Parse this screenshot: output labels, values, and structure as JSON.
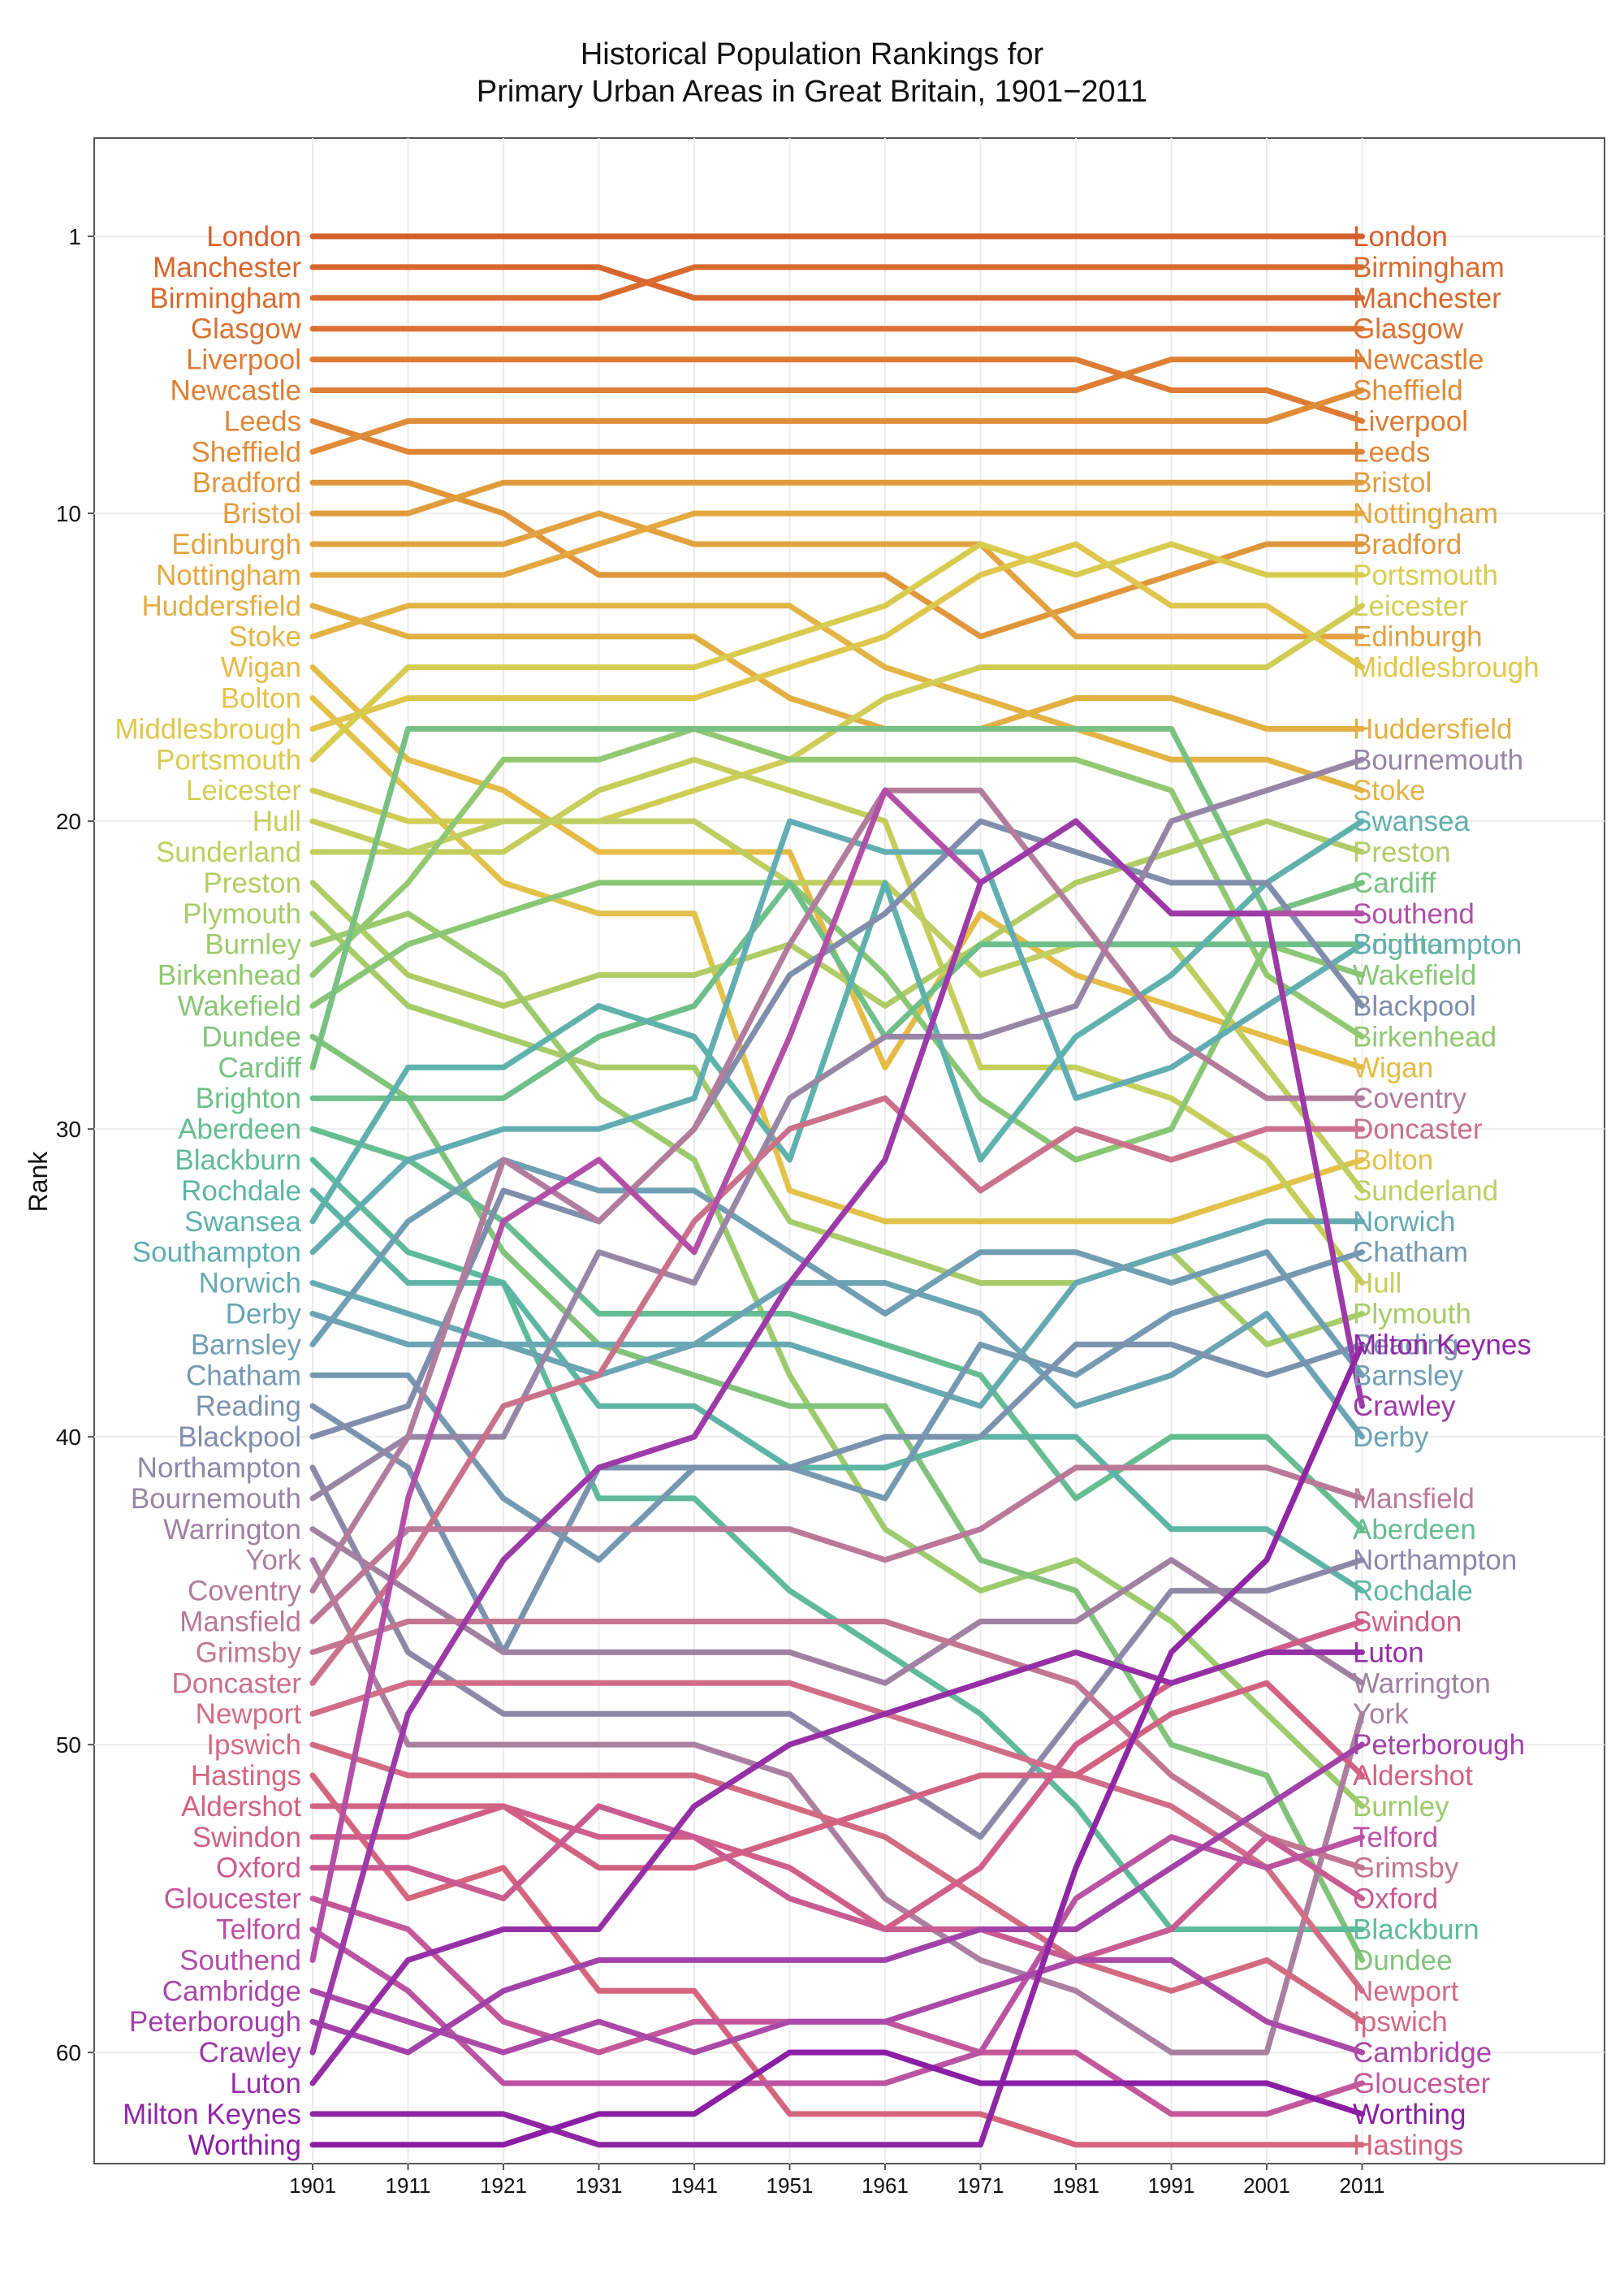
{
  "title": [
    "Historical Population Rankings for",
    "Primary Urban Areas in Great Britain, 1901−2011"
  ],
  "chart_data": {
    "type": "line",
    "ylabel": "Rank",
    "y_reversed": true,
    "ylim": [
      65.5,
      -2
    ],
    "yticks": [
      1,
      10,
      20,
      30,
      40,
      50,
      60
    ],
    "x": [
      "1901",
      "1911",
      "1921",
      "1931",
      "1941",
      "1951",
      "1961",
      "1971",
      "1981",
      "1991",
      "2001",
      "2011"
    ],
    "grid": true,
    "series": [
      {
        "name": "London",
        "color": "#D55E2B",
        "values": [
          1,
          1,
          1,
          1,
          1,
          1,
          1,
          1,
          1,
          1,
          1,
          1
        ]
      },
      {
        "name": "Manchester",
        "color": "#D8662E",
        "values": [
          2,
          2,
          2,
          2,
          3,
          3,
          3,
          3,
          3,
          3,
          3,
          3
        ]
      },
      {
        "name": "Birmingham",
        "color": "#D96B2F",
        "values": [
          3,
          3,
          3,
          3,
          2,
          2,
          2,
          2,
          2,
          2,
          2,
          2
        ]
      },
      {
        "name": "Glasgow",
        "color": "#DB7131",
        "values": [
          4,
          4,
          4,
          4,
          4,
          4,
          4,
          4,
          4,
          4,
          4,
          4
        ]
      },
      {
        "name": "Liverpool",
        "color": "#DD7A33",
        "values": [
          5,
          5,
          5,
          5,
          5,
          5,
          5,
          5,
          5,
          6,
          6,
          7
        ]
      },
      {
        "name": "Newcastle",
        "color": "#DE7F34",
        "values": [
          6,
          6,
          6,
          6,
          6,
          6,
          6,
          6,
          6,
          5,
          5,
          5
        ]
      },
      {
        "name": "Leeds",
        "color": "#DF8536",
        "values": [
          7,
          8,
          8,
          8,
          8,
          8,
          8,
          8,
          8,
          8,
          8,
          8
        ]
      },
      {
        "name": "Sheffield",
        "color": "#E08C38",
        "values": [
          8,
          7,
          7,
          7,
          7,
          7,
          7,
          7,
          7,
          7,
          7,
          6
        ]
      },
      {
        "name": "Bradford",
        "color": "#E0963B",
        "values": [
          9,
          9,
          10,
          12,
          12,
          12,
          12,
          14,
          13,
          12,
          11,
          11
        ]
      },
      {
        "name": "Bristol",
        "color": "#E19C3D",
        "values": [
          10,
          10,
          9,
          9,
          9,
          9,
          9,
          9,
          9,
          9,
          9,
          9
        ]
      },
      {
        "name": "Edinburgh",
        "color": "#E2A23F",
        "values": [
          11,
          11,
          11,
          10,
          11,
          11,
          11,
          11,
          14,
          14,
          14,
          14
        ]
      },
      {
        "name": "Nottingham",
        "color": "#E3A840",
        "values": [
          12,
          12,
          12,
          11,
          10,
          10,
          10,
          10,
          10,
          10,
          10,
          10
        ]
      },
      {
        "name": "Huddersfield",
        "color": "#E2AF43",
        "values": [
          13,
          14,
          14,
          14,
          14,
          16,
          17,
          17,
          16,
          16,
          17,
          17
        ]
      },
      {
        "name": "Stoke",
        "color": "#E3B444",
        "values": [
          14,
          13,
          13,
          13,
          13,
          13,
          15,
          16,
          17,
          18,
          18,
          19
        ]
      },
      {
        "name": "Wigan",
        "color": "#E4BC46",
        "values": [
          15,
          18,
          19,
          21,
          21,
          21,
          28,
          23,
          25,
          26,
          27,
          28
        ]
      },
      {
        "name": "Bolton",
        "color": "#E2C24A",
        "values": [
          16,
          19,
          22,
          23,
          23,
          32,
          33,
          33,
          33,
          33,
          32,
          31
        ]
      },
      {
        "name": "Middlesbrough",
        "color": "#E0C64C",
        "values": [
          17,
          16,
          16,
          16,
          16,
          15,
          14,
          12,
          11,
          13,
          13,
          15
        ]
      },
      {
        "name": "Portsmouth",
        "color": "#D8CC50",
        "values": [
          18,
          15,
          15,
          15,
          15,
          14,
          13,
          11,
          12,
          11,
          12,
          12
        ]
      },
      {
        "name": "Leicester",
        "color": "#D0CD56",
        "values": [
          19,
          20,
          20,
          20,
          19,
          18,
          16,
          15,
          15,
          15,
          15,
          13
        ]
      },
      {
        "name": "Hull",
        "color": "#C6CE5B",
        "values": [
          20,
          21,
          21,
          19,
          18,
          19,
          20,
          28,
          28,
          29,
          31,
          35
        ]
      },
      {
        "name": "Sunderland",
        "color": "#BFCE60",
        "values": [
          21,
          21,
          20,
          20,
          20,
          22,
          22,
          25,
          24,
          24,
          28,
          32
        ]
      },
      {
        "name": "Preston",
        "color": "#B1CC65",
        "values": [
          22,
          25,
          26,
          25,
          25,
          24,
          26,
          24,
          22,
          21,
          20,
          21
        ]
      },
      {
        "name": "Plymouth",
        "color": "#A7CB68",
        "values": [
          23,
          26,
          27,
          28,
          28,
          33,
          34,
          35,
          35,
          34,
          37,
          36
        ]
      },
      {
        "name": "Burnley",
        "color": "#9DCA6D",
        "values": [
          24,
          23,
          25,
          29,
          31,
          38,
          43,
          45,
          44,
          46,
          49,
          52
        ]
      },
      {
        "name": "Birkenhead",
        "color": "#92C871",
        "values": [
          25,
          22,
          18,
          18,
          17,
          18,
          18,
          18,
          18,
          19,
          25,
          27
        ]
      },
      {
        "name": "Wakefield",
        "color": "#89C676",
        "values": [
          26,
          24,
          23,
          22,
          22,
          22,
          25,
          29,
          31,
          30,
          24,
          25
        ]
      },
      {
        "name": "Dundee",
        "color": "#81C37B",
        "values": [
          27,
          29,
          34,
          37,
          38,
          39,
          39,
          44,
          45,
          50,
          51,
          57
        ]
      },
      {
        "name": "Cardiff",
        "color": "#78C182",
        "values": [
          28,
          17,
          17,
          17,
          17,
          17,
          17,
          17,
          17,
          17,
          23,
          22
        ]
      },
      {
        "name": "Brighton",
        "color": "#6EBF89",
        "values": [
          29,
          29,
          29,
          27,
          26,
          22,
          27,
          24,
          24,
          24,
          24,
          24
        ]
      },
      {
        "name": "Aberdeen",
        "color": "#66BD92",
        "values": [
          30,
          31,
          33,
          36,
          36,
          36,
          37,
          38,
          42,
          40,
          40,
          43
        ]
      },
      {
        "name": "Blackburn",
        "color": "#5FBA9C",
        "values": [
          31,
          34,
          35,
          42,
          42,
          45,
          47,
          49,
          52,
          56,
          56,
          56
        ]
      },
      {
        "name": "Rochdale",
        "color": "#5EB5A5",
        "values": [
          32,
          35,
          35,
          39,
          39,
          41,
          41,
          40,
          40,
          43,
          43,
          45
        ]
      },
      {
        "name": "Swansea",
        "color": "#5FB1AC",
        "values": [
          33,
          28,
          28,
          26,
          27,
          31,
          22,
          31,
          27,
          25,
          22,
          20
        ]
      },
      {
        "name": "Southampton",
        "color": "#62ADB1",
        "values": [
          34,
          31,
          30,
          30,
          29,
          20,
          21,
          21,
          29,
          28,
          26,
          24
        ]
      },
      {
        "name": "Norwich",
        "color": "#66A9B3",
        "values": [
          35,
          36,
          37,
          37,
          37,
          37,
          38,
          39,
          35,
          34,
          33,
          33
        ]
      },
      {
        "name": "Derby",
        "color": "#6BA4B3",
        "values": [
          36,
          37,
          37,
          38,
          37,
          35,
          35,
          36,
          39,
          38,
          36,
          40
        ]
      },
      {
        "name": "Barnsley",
        "color": "#709EB2",
        "values": [
          37,
          33,
          31,
          32,
          32,
          34,
          36,
          34,
          34,
          35,
          34,
          38
        ]
      },
      {
        "name": "Chatham",
        "color": "#7599B0",
        "values": [
          38,
          38,
          42,
          44,
          41,
          41,
          42,
          37,
          38,
          36,
          35,
          34
        ]
      },
      {
        "name": "Reading",
        "color": "#7B93AE",
        "values": [
          39,
          41,
          47,
          41,
          41,
          41,
          40,
          40,
          37,
          37,
          38,
          37
        ]
      },
      {
        "name": "Blackpool",
        "color": "#808DAB",
        "values": [
          40,
          39,
          32,
          33,
          30,
          25,
          23,
          20,
          21,
          22,
          22,
          26
        ]
      },
      {
        "name": "Northampton",
        "color": "#8C89A8",
        "values": [
          41,
          47,
          49,
          49,
          49,
          49,
          51,
          53,
          49,
          45,
          45,
          44
        ]
      },
      {
        "name": "Bournemouth",
        "color": "#9786A5",
        "values": [
          42,
          40,
          40,
          34,
          35,
          29,
          27,
          27,
          26,
          20,
          19,
          18
        ]
      },
      {
        "name": "Warrington",
        "color": "#A081A2",
        "values": [
          43,
          45,
          47,
          47,
          47,
          47,
          48,
          46,
          46,
          44,
          46,
          48
        ]
      },
      {
        "name": "York",
        "color": "#AA7FA0",
        "values": [
          44,
          50,
          50,
          50,
          50,
          51,
          55,
          57,
          58,
          60,
          60,
          49
        ]
      },
      {
        "name": "Coventry",
        "color": "#B27C9D",
        "values": [
          45,
          40,
          31,
          33,
          30,
          24,
          19,
          19,
          23,
          27,
          29,
          29
        ]
      },
      {
        "name": "Mansfield",
        "color": "#BA7998",
        "values": [
          46,
          43,
          43,
          43,
          43,
          43,
          44,
          43,
          41,
          41,
          41,
          42
        ]
      },
      {
        "name": "Grimsby",
        "color": "#C27692",
        "values": [
          47,
          46,
          46,
          46,
          46,
          46,
          46,
          47,
          48,
          51,
          53,
          54
        ]
      },
      {
        "name": "Doncaster",
        "color": "#CA718C",
        "values": [
          48,
          44,
          39,
          38,
          33,
          30,
          29,
          32,
          30,
          31,
          30,
          30
        ]
      },
      {
        "name": "Newport",
        "color": "#D16D86",
        "values": [
          49,
          48,
          48,
          48,
          48,
          48,
          49,
          50,
          51,
          52,
          54,
          58
        ]
      },
      {
        "name": "Ipswich",
        "color": "#D26A81",
        "values": [
          50,
          51,
          51,
          51,
          51,
          52,
          53,
          55,
          57,
          58,
          57,
          59
        ]
      },
      {
        "name": "Hastings",
        "color": "#D5657D",
        "values": [
          51,
          55,
          54,
          58,
          58,
          62,
          62,
          62,
          63,
          63,
          63,
          63
        ]
      },
      {
        "name": "Aldershot",
        "color": "#D26281",
        "values": [
          52,
          52,
          52,
          54,
          54,
          53,
          52,
          51,
          51,
          49,
          48,
          51
        ]
      },
      {
        "name": "Swindon",
        "color": "#CF5F88",
        "values": [
          53,
          53,
          52,
          53,
          53,
          54,
          56,
          54,
          50,
          48,
          47,
          46
        ]
      },
      {
        "name": "Oxford",
        "color": "#C95B91",
        "values": [
          54,
          54,
          55,
          52,
          53,
          55,
          56,
          56,
          57,
          56,
          53,
          55
        ]
      },
      {
        "name": "Gloucester",
        "color": "#C3579A",
        "values": [
          55,
          56,
          59,
          60,
          59,
          59,
          59,
          60,
          60,
          62,
          62,
          61
        ]
      },
      {
        "name": "Telford",
        "color": "#BA53A1",
        "values": [
          56,
          58,
          61,
          61,
          61,
          61,
          61,
          60,
          55,
          53,
          54,
          53
        ]
      },
      {
        "name": "Southend",
        "color": "#B24FA6",
        "values": [
          57,
          42,
          33,
          31,
          34,
          27,
          19,
          22,
          20,
          23,
          23,
          23
        ]
      },
      {
        "name": "Cambridge",
        "color": "#AA49A8",
        "values": [
          58,
          59,
          60,
          59,
          60,
          59,
          59,
          58,
          57,
          57,
          59,
          60
        ]
      },
      {
        "name": "Peterborough",
        "color": "#A242A9",
        "values": [
          59,
          60,
          58,
          57,
          57,
          57,
          57,
          56,
          56,
          54,
          52,
          50
        ]
      },
      {
        "name": "Crawley",
        "color": "#9C3AA8",
        "values": [
          60,
          49,
          44,
          41,
          40,
          35,
          31,
          22,
          20,
          23,
          23,
          39
        ]
      },
      {
        "name": "Luton",
        "color": "#952FA6",
        "values": [
          61,
          57,
          56,
          56,
          52,
          50,
          49,
          48,
          47,
          48,
          47,
          47
        ]
      },
      {
        "name": "Milton Keynes",
        "color": "#8F27A5",
        "values": [
          62,
          62,
          62,
          63,
          63,
          63,
          63,
          63,
          54,
          47,
          44,
          37
        ]
      },
      {
        "name": "Worthing",
        "color": "#8A1EA4",
        "values": [
          63,
          63,
          63,
          62,
          62,
          60,
          60,
          61,
          61,
          61,
          61,
          62
        ]
      }
    ]
  }
}
